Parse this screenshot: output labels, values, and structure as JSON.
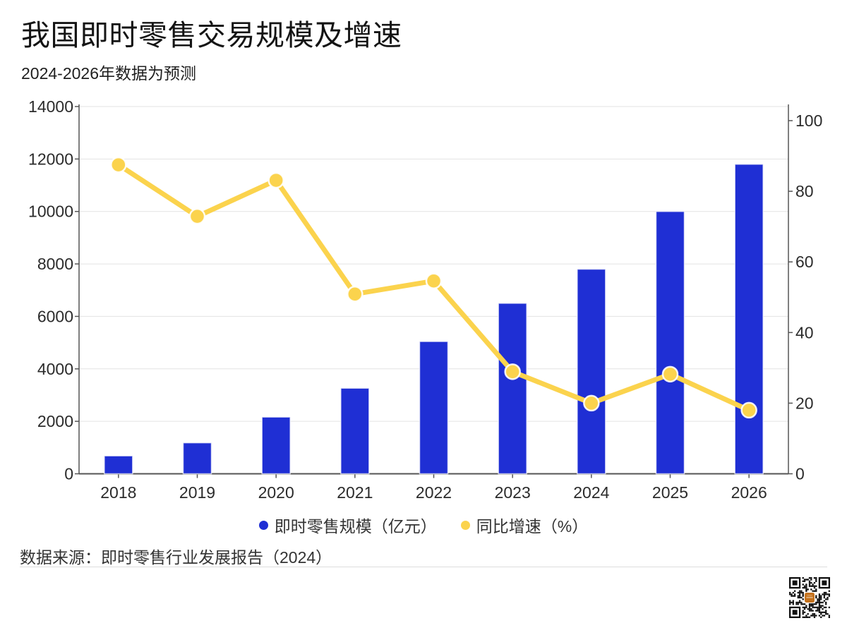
{
  "page": {
    "title": "我国即时零售交易规模及增速",
    "subtitle": "2024-2026年数据为预测",
    "source": "数据来源：即时零售行业发展报告（2024）"
  },
  "legend": [
    {
      "label": "即时零售规模（亿元）",
      "color": "#1f2fd4",
      "marker": "circle"
    },
    {
      "label": "同比增速（%）",
      "color": "#fbd34d",
      "marker": "circle"
    }
  ],
  "colors": {
    "bar": "#1f2fd4",
    "bar_edge": "rgba(255,255,255,0.7)",
    "line": "#fbd34d",
    "marker_edge": "rgba(255,255,255,0.9)",
    "grid": "#e3e3e3",
    "axis": "#555555",
    "tick_text": "#2b2b2b",
    "qr_dark": "#111111",
    "qr_logo": "#c4711c"
  },
  "chart_data": {
    "type": "bar+line combo, dual axis",
    "categories": [
      "2018",
      "2019",
      "2020",
      "2021",
      "2022",
      "2023",
      "2024",
      "2025",
      "2026"
    ],
    "series": [
      {
        "name": "即时零售规模（亿元）",
        "type": "bar",
        "axis": "left",
        "color": "#1f2fd4",
        "values": [
          683,
          1181,
          2162,
          3263,
          5043,
          6500,
          7800,
          10000,
          11800
        ]
      },
      {
        "name": "同比增速（%）",
        "type": "line",
        "axis": "right",
        "color": "#fbd34d",
        "values": [
          87.5,
          72.9,
          83.1,
          50.9,
          54.6,
          28.9,
          20.0,
          28.2,
          18.0
        ]
      }
    ],
    "left_axis": {
      "min": 0,
      "max": 14000,
      "tick_step": 2000,
      "ticks": [
        0,
        2000,
        4000,
        6000,
        8000,
        10000,
        12000,
        14000
      ]
    },
    "right_axis": {
      "min": 0,
      "max": 100,
      "tick_step": 20,
      "ticks": [
        0,
        20,
        40,
        60,
        80,
        100
      ]
    },
    "grid": "horizontal gridlines at left-axis ticks only",
    "legend_position": "bottom center",
    "notes": "2024-2026 values are forecast"
  }
}
